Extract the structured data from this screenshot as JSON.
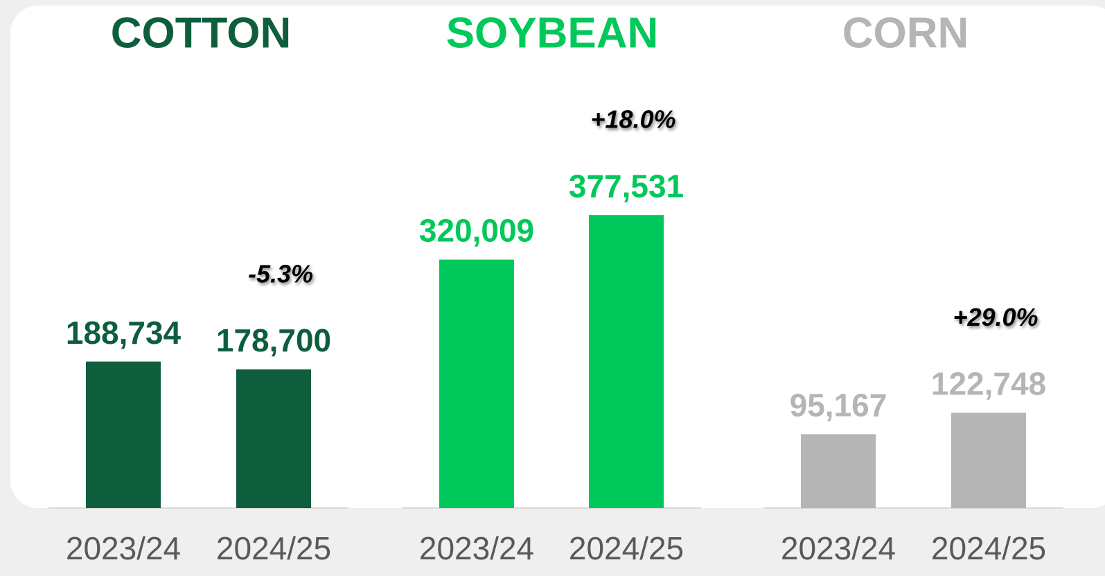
{
  "chart_data": [
    {
      "type": "bar",
      "title": "COTTON",
      "categories": [
        "2023/24",
        "2024/25"
      ],
      "values": [
        188734,
        178700
      ],
      "value_labels": [
        "188,734",
        "178,700"
      ],
      "annotation": "-5.3%",
      "color": "#0e5e3e",
      "ylim": [
        0,
        400000
      ]
    },
    {
      "type": "bar",
      "title": "SOYBEAN",
      "categories": [
        "2023/24",
        "2024/25"
      ],
      "values": [
        320009,
        377531
      ],
      "value_labels": [
        "320,009",
        "377,531"
      ],
      "annotation": "+18.0%",
      "color": "#00c85a",
      "ylim": [
        0,
        400000
      ]
    },
    {
      "type": "bar",
      "title": "CORN",
      "categories": [
        "2023/24",
        "2024/25"
      ],
      "values": [
        95167,
        122748
      ],
      "value_labels": [
        "95,167",
        "122,748"
      ],
      "annotation": "+29.0%",
      "color": "#b5b5b5",
      "ylim": [
        0,
        400000
      ]
    }
  ]
}
